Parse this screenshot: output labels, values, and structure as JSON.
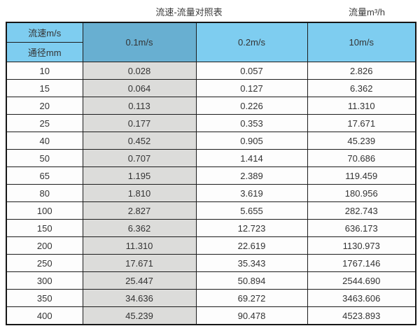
{
  "caption": {
    "title": "流速-流量对照表",
    "unit_label": "流量m³/h"
  },
  "header": {
    "corner_top": "流速m/s",
    "corner_bottom": "通径mm",
    "velocity_columns": [
      "0.1m/s",
      "0.2m/s",
      "10m/s"
    ]
  },
  "rows": [
    [
      "10",
      "0.028",
      "0.057",
      "2.826"
    ],
    [
      "15",
      "0.064",
      "0.127",
      "6.362"
    ],
    [
      "20",
      "0.113",
      "0.226",
      "11.310"
    ],
    [
      "25",
      "0.177",
      "0.353",
      "17.671"
    ],
    [
      "40",
      "0.452",
      "0.905",
      "45.239"
    ],
    [
      "50",
      "0.707",
      "1.414",
      "70.686"
    ],
    [
      "65",
      "1.195",
      "2.389",
      "119.459"
    ],
    [
      "80",
      "1.810",
      "3.619",
      "180.956"
    ],
    [
      "100",
      "2.827",
      "5.655",
      "282.743"
    ],
    [
      "150",
      "6.362",
      "12.723",
      "636.173"
    ],
    [
      "200",
      "11.310",
      "22.619",
      "1130.973"
    ],
    [
      "250",
      "17.671",
      "35.343",
      "1767.146"
    ],
    [
      "300",
      "25.447",
      "50.894",
      "2544.690"
    ],
    [
      "350",
      "34.636",
      "69.272",
      "3463.606"
    ],
    [
      "400",
      "45.239",
      "90.478",
      "4523.893"
    ]
  ],
  "colors": {
    "header_blue": "#7ecdf0",
    "highlight_header_blue": "#68afd1",
    "highlight_column_gray": "#dcdcda",
    "grid_border": "#1c1c1c"
  },
  "chart_data": {
    "type": "table",
    "title": "流速-流量对照表",
    "unit": "流量m³/h",
    "columns": [
      "通径mm",
      "0.1m/s",
      "0.2m/s",
      "10m/s"
    ],
    "rows": [
      [
        10,
        0.028,
        0.057,
        2.826
      ],
      [
        15,
        0.064,
        0.127,
        6.362
      ],
      [
        20,
        0.113,
        0.226,
        11.31
      ],
      [
        25,
        0.177,
        0.353,
        17.671
      ],
      [
        40,
        0.452,
        0.905,
        45.239
      ],
      [
        50,
        0.707,
        1.414,
        70.686
      ],
      [
        65,
        1.195,
        2.389,
        119.459
      ],
      [
        80,
        1.81,
        3.619,
        180.956
      ],
      [
        100,
        2.827,
        5.655,
        282.743
      ],
      [
        150,
        6.362,
        12.723,
        636.173
      ],
      [
        200,
        11.31,
        22.619,
        1130.973
      ],
      [
        250,
        17.671,
        35.343,
        1767.146
      ],
      [
        300,
        25.447,
        50.894,
        2544.69
      ],
      [
        350,
        34.636,
        69.272,
        3463.606
      ],
      [
        400,
        45.239,
        90.478,
        4523.893
      ]
    ]
  }
}
